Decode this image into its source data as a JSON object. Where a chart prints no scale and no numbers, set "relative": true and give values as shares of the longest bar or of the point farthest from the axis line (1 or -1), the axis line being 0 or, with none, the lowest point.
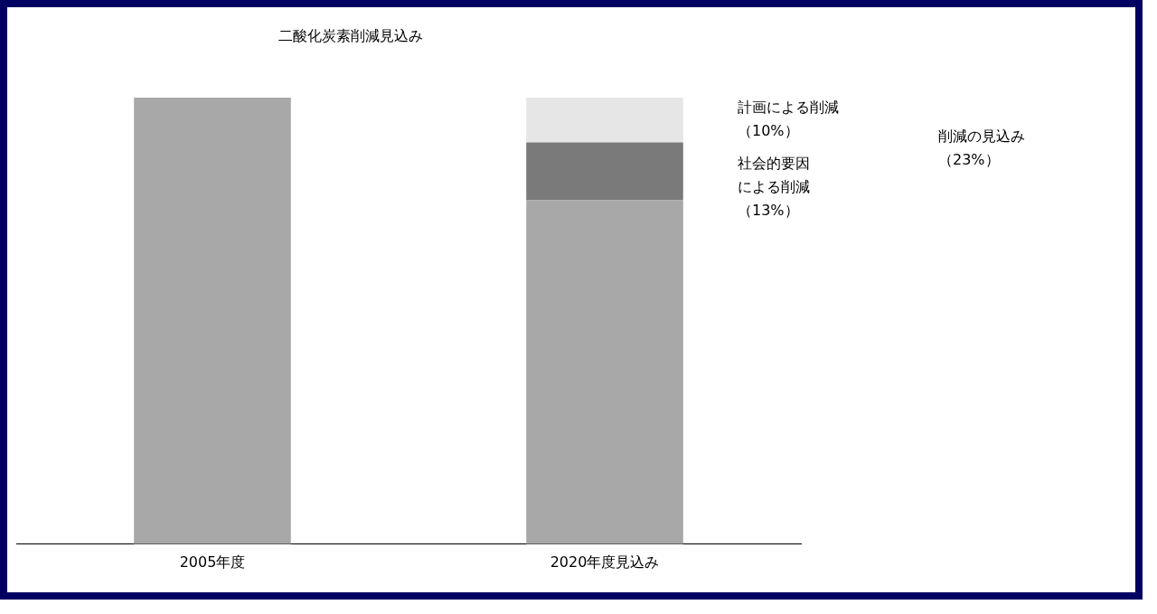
{
  "chart_data": {
    "type": "bar",
    "title": "二酸化炭素削減見込み",
    "relative": true,
    "stacked": true,
    "categories": [
      "2005年度",
      "2020年度見込み"
    ],
    "series": [
      {
        "color": "#a8a8a8",
        "values": [
          1,
          0.77
        ]
      },
      {
        "color": "#7a7a7a",
        "values": [
          null,
          0.13
        ]
      },
      {
        "color": "#e6e6e6",
        "values": [
          null,
          0.1
        ]
      }
    ],
    "annotations": [
      "計画による削減（10%）",
      "社会的要因による削減（13%）",
      "削減の見込み（23%）"
    ],
    "grid": false,
    "legend": false
  }
}
